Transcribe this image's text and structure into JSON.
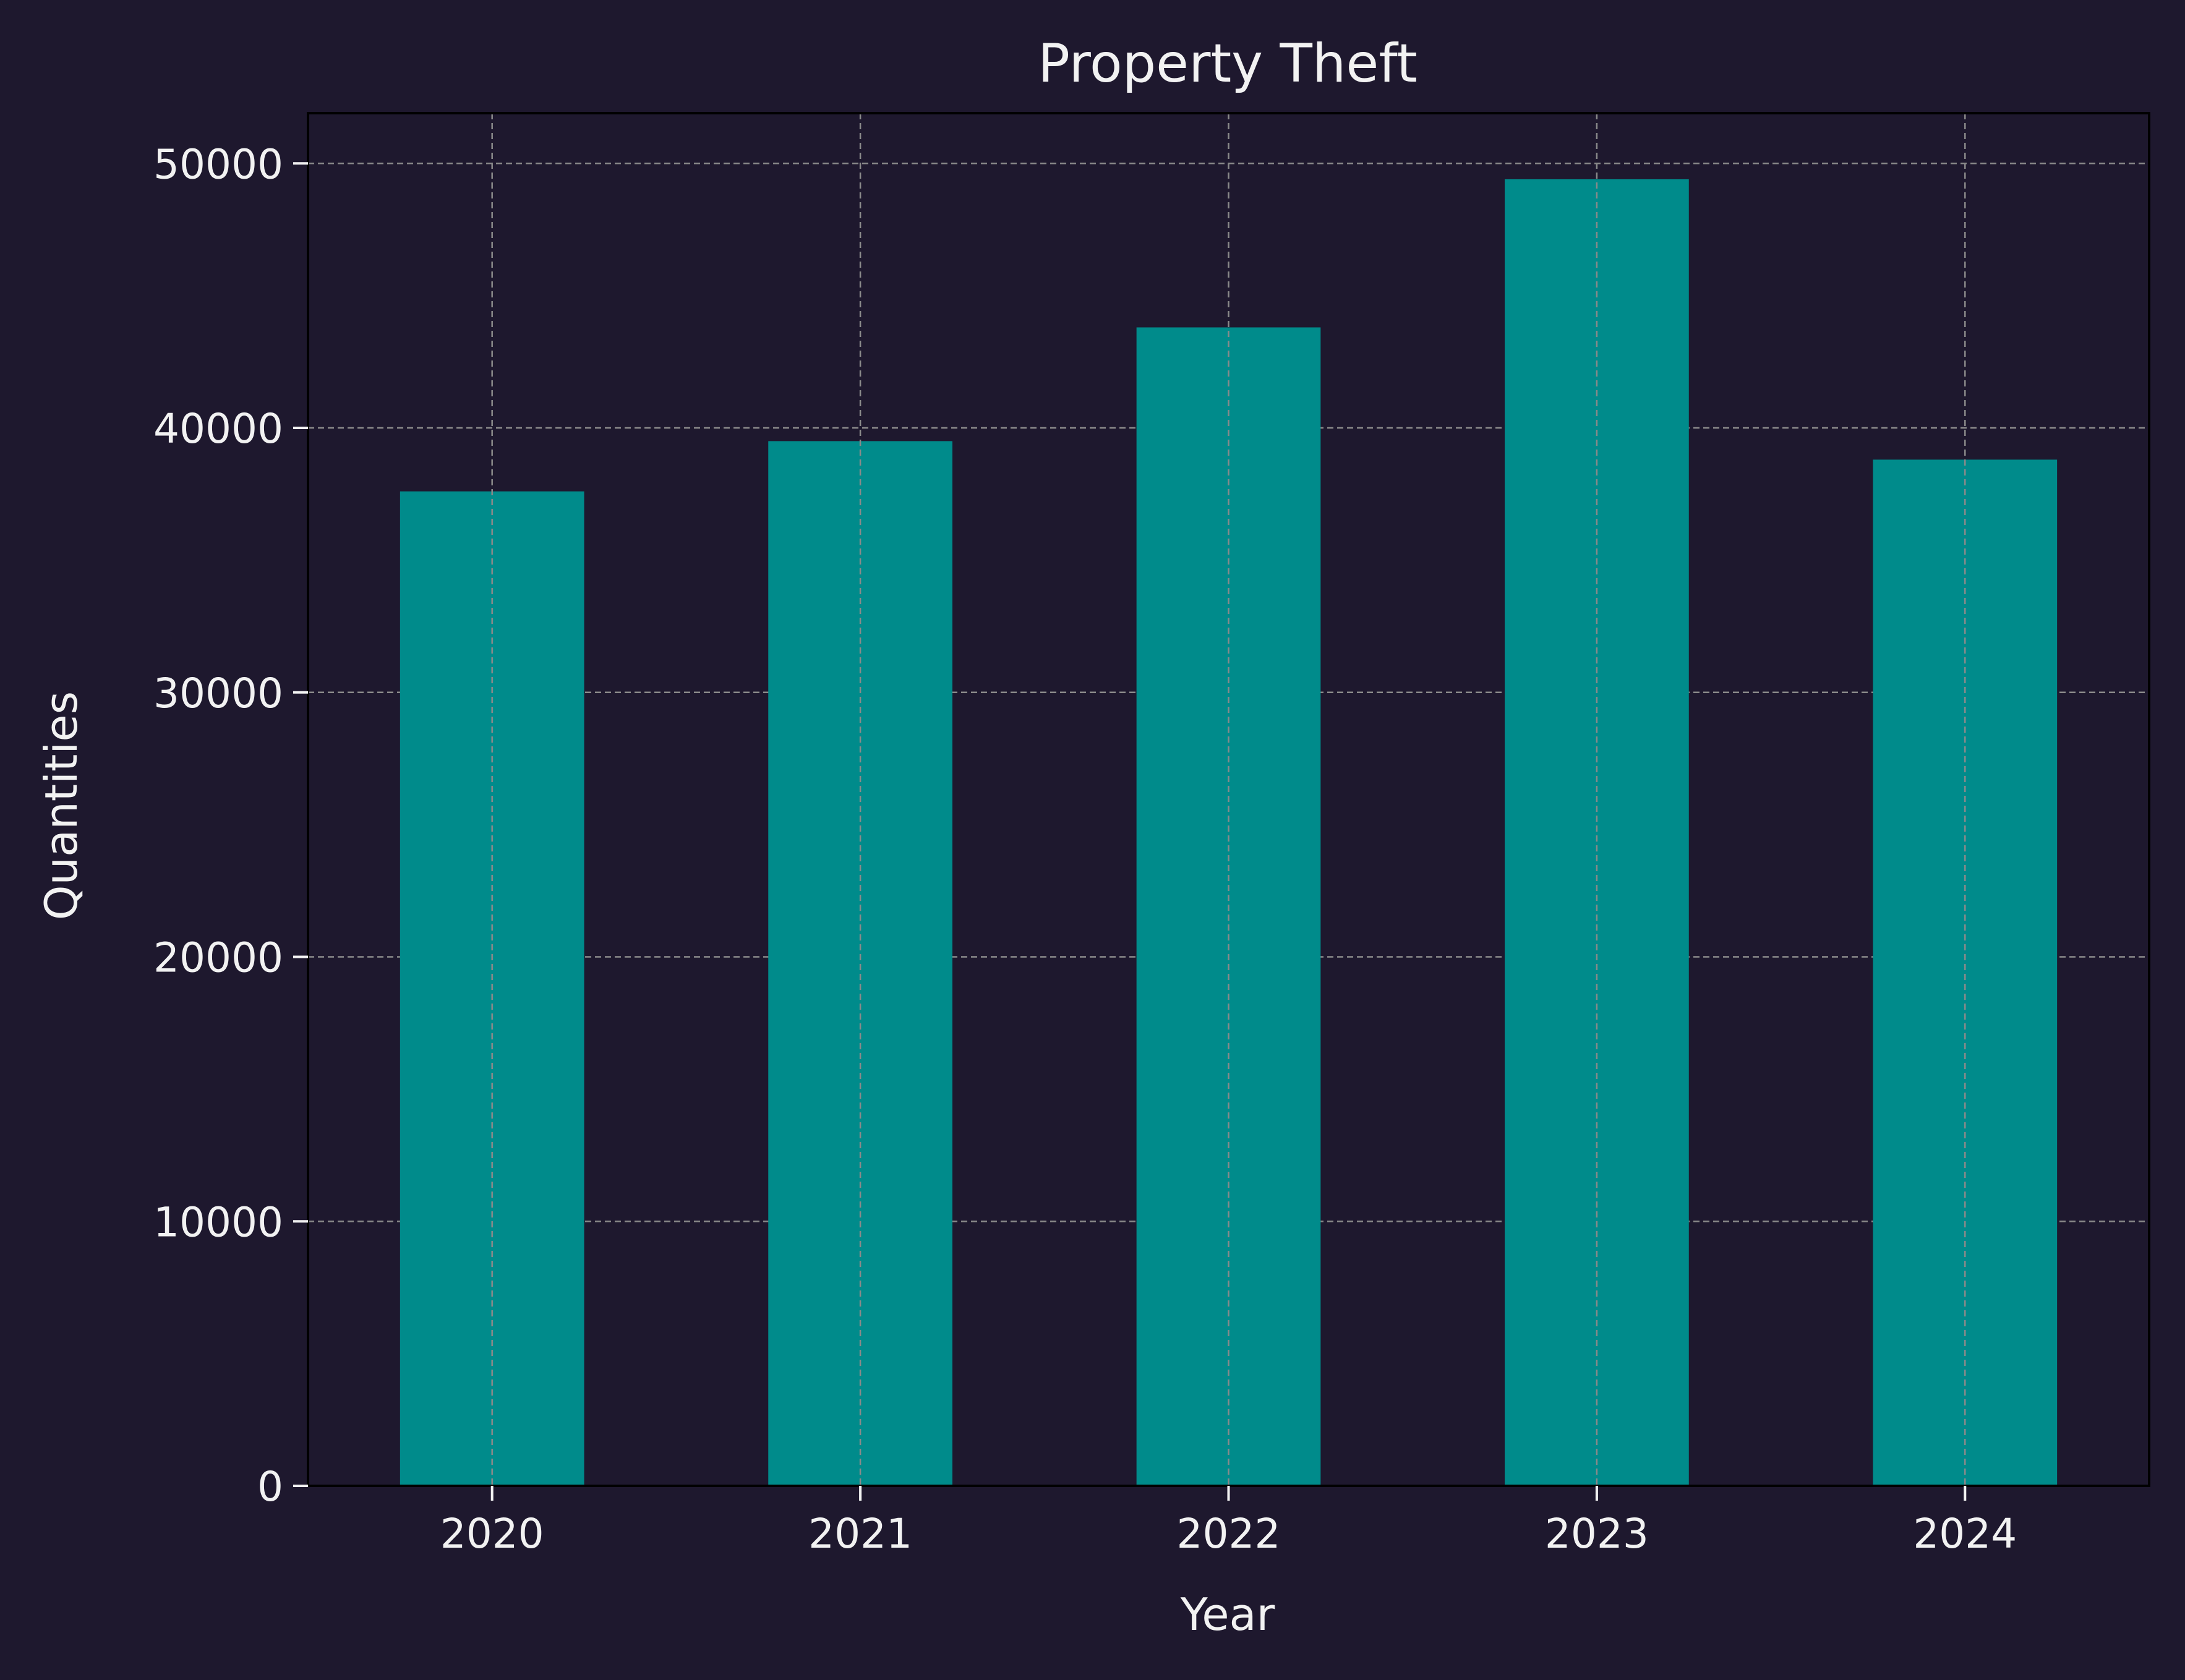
{
  "chart_data": {
    "type": "bar",
    "title": "Property Theft",
    "xlabel": "Year",
    "ylabel": "Quantities",
    "categories": [
      "2020",
      "2021",
      "2022",
      "2023",
      "2024"
    ],
    "values": [
      37600,
      39500,
      43800,
      49400,
      38800
    ],
    "ylim": [
      0,
      51900
    ],
    "yticks": [
      0,
      10000,
      20000,
      30000,
      40000,
      50000
    ],
    "grid": true,
    "legend": "none"
  },
  "colors": {
    "background": "#1e182e",
    "bar": "#008b8b",
    "text": "#f2f2f2",
    "grid": "#8a8a8a",
    "axis": "#000000"
  }
}
